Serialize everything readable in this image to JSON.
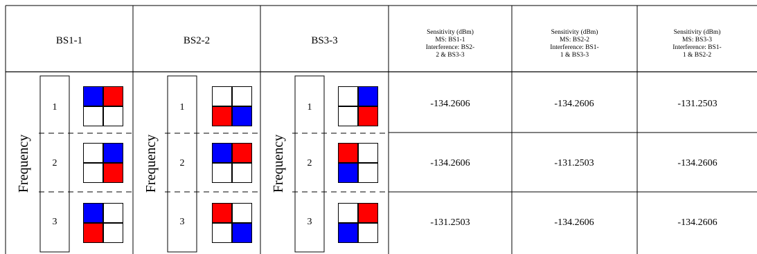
{
  "headers": {
    "bs": [
      "BS1-1",
      "BS2-2",
      "BS3-3"
    ],
    "sensitivity": [
      [
        "Sensitivity (dBm)",
        "MS: BS1-1",
        "Interference: BS2-",
        "2 & BS3-3"
      ],
      [
        "Sensitivity (dBm)",
        "MS: BS2-2",
        "Interference: BS1-",
        "1 & BS3-3"
      ],
      [
        "Sensitivity (dBm)",
        "MS: BS3-3",
        "Interference: BS1-",
        "1 & BS2-2"
      ]
    ]
  },
  "frequency_label": "Frequency",
  "frequencies": [
    "1",
    "2",
    "3"
  ],
  "colors": {
    "red": "#ff0000",
    "blue": "#0000ff"
  },
  "patterns": [
    [
      [
        "blue",
        "red",
        "white",
        "white"
      ],
      [
        "white",
        "blue",
        "white",
        "red"
      ],
      [
        "blue",
        "white",
        "red",
        "white"
      ]
    ],
    [
      [
        "white",
        "white",
        "red",
        "blue"
      ],
      [
        "blue",
        "red",
        "white",
        "white"
      ],
      [
        "red",
        "white",
        "white",
        "blue"
      ]
    ],
    [
      [
        "white",
        "blue",
        "white",
        "red"
      ],
      [
        "red",
        "white",
        "blue",
        "white"
      ],
      [
        "white",
        "red",
        "blue",
        "white"
      ]
    ]
  ],
  "values": [
    [
      "-134.2606",
      "-134.2606",
      "-131.2503"
    ],
    [
      "-134.2606",
      "-131.2503",
      "-134.2606"
    ],
    [
      "-131.2503",
      "-134.2606",
      "-134.2606"
    ]
  ]
}
